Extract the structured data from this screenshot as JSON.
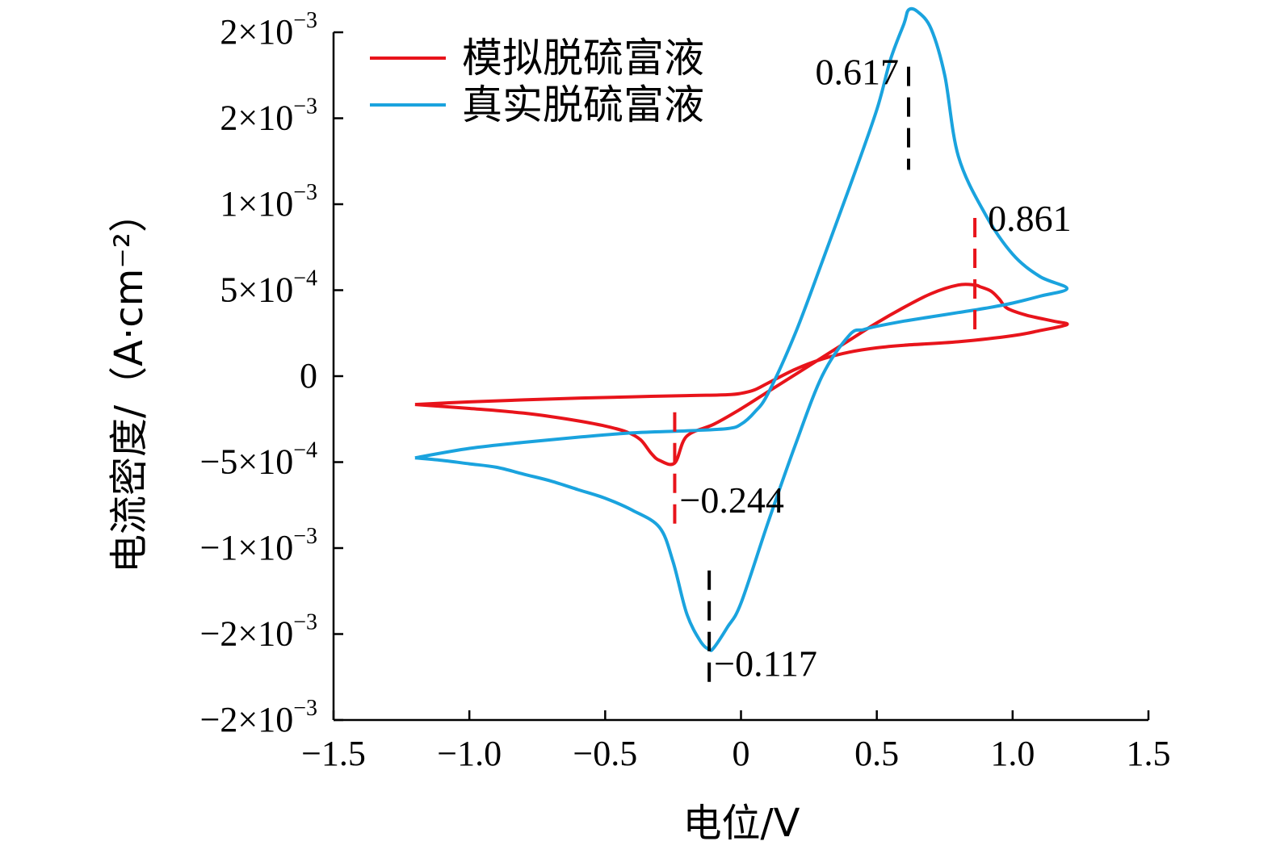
{
  "chart_data": {
    "type": "line",
    "xlabel": "电位/V",
    "ylabel": "电流密度/（A·cm⁻²）",
    "xlim": [
      -1.5,
      1.5
    ],
    "ylim": [
      -0.002,
      0.002
    ],
    "x_ticks": [
      {
        "value": -1.5,
        "label": "−1.5"
      },
      {
        "value": -1.0,
        "label": "−1.0"
      },
      {
        "value": -0.5,
        "label": "−0.5"
      },
      {
        "value": 0,
        "label": "0"
      },
      {
        "value": 0.5,
        "label": "0.5"
      },
      {
        "value": 1.0,
        "label": "1.0"
      },
      {
        "value": 1.5,
        "label": "1.5"
      }
    ],
    "y_ticks": [
      {
        "value": 0.002,
        "mant": "2×10",
        "exp": "−3"
      },
      {
        "value": 0.0015,
        "mant": "2×10",
        "exp": "−3"
      },
      {
        "value": 0.001,
        "mant": "1×10",
        "exp": "−3"
      },
      {
        "value": 0.0005,
        "mant": "5×10",
        "exp": "−4"
      },
      {
        "value": 0,
        "mant": "0",
        "exp": ""
      },
      {
        "value": -0.0005,
        "mant": "−5×10",
        "exp": "−4"
      },
      {
        "value": -0.001,
        "mant": "−1×10",
        "exp": "−3"
      },
      {
        "value": -0.0015,
        "mant": "−2×10",
        "exp": "−3"
      },
      {
        "value": -0.002,
        "mant": "−2×10",
        "exp": "−3"
      }
    ],
    "grid": false,
    "legend_position": "top-left",
    "series": [
      {
        "name": "模拟脱硫富液",
        "color": "#e8141b",
        "x": [
          -1.2,
          -1.0,
          -0.8,
          -0.6,
          -0.4,
          -0.2,
          -0.05,
          0,
          0.05,
          0.1,
          0.2,
          0.3,
          0.4,
          0.5,
          0.6,
          0.8,
          1.0,
          1.1,
          1.2,
          1.15,
          1.05,
          0.98,
          0.95,
          0.92,
          0.88,
          0.861,
          0.8,
          0.7,
          0.6,
          0.5,
          0.4,
          0.3,
          0.2,
          0.1,
          0,
          -0.1,
          -0.2,
          -0.244,
          -0.3,
          -0.33,
          -0.37,
          -0.42,
          -0.5,
          -0.6,
          -0.7,
          -0.8,
          -0.9,
          -1.0,
          -1.1,
          -1.2
        ],
        "y": [
          -0.000165,
          -0.00015,
          -0.000138,
          -0.000128,
          -0.00012,
          -0.000113,
          -0.000108,
          -0.0001,
          -8e-05,
          -4e-05,
          4e-05,
          0.0001,
          0.00014,
          0.000165,
          0.00018,
          0.0002,
          0.000235,
          0.000265,
          0.0003,
          0.00032,
          0.000355,
          0.000395,
          0.00045,
          0.000495,
          0.00052,
          0.00053,
          0.00053,
          0.00048,
          0.0004,
          0.00031,
          0.00021,
          0.00011,
          1e-05,
          -9e-05,
          -0.00019,
          -0.00028,
          -0.00035,
          -0.000505,
          -0.00049,
          -0.00045,
          -0.00037,
          -0.000325,
          -0.00029,
          -0.00026,
          -0.000235,
          -0.000215,
          -0.0002,
          -0.000188,
          -0.000176,
          -0.000165
        ]
      },
      {
        "name": "真实脱硫富液",
        "color": "#1aa3de",
        "x": [
          -1.2,
          -1.0,
          -0.8,
          -0.6,
          -0.4,
          -0.2,
          -0.05,
          0,
          0.05,
          0.1,
          0.2,
          0.3,
          0.4,
          0.5,
          0.55,
          0.6,
          0.617,
          0.65,
          0.7,
          0.75,
          0.8,
          0.9,
          1.0,
          1.1,
          1.2,
          1.1,
          1.0,
          0.9,
          0.8,
          0.7,
          0.6,
          0.5,
          0.45,
          0.4,
          0.3,
          0.2,
          0.1,
          0,
          -0.05,
          -0.1,
          -0.117,
          -0.15,
          -0.2,
          -0.25,
          -0.3,
          -0.4,
          -0.5,
          -0.6,
          -0.7,
          -0.8,
          -0.9,
          -1.0,
          -1.1,
          -1.2
        ],
        "y": [
          -0.000475,
          -0.00042,
          -0.000385,
          -0.000355,
          -0.00033,
          -0.000318,
          -0.000305,
          -0.00028,
          -0.00021,
          -0.0001,
          0.00025,
          0.00067,
          0.0011,
          0.00155,
          0.00184,
          0.00205,
          0.00213,
          0.00212,
          0.00202,
          0.00175,
          0.00128,
          0.00094,
          0.00071,
          0.00058,
          0.00051,
          0.000465,
          0.000425,
          0.000395,
          0.00037,
          0.000345,
          0.00032,
          0.00029,
          0.00027,
          0.00024,
          5e-06,
          -0.0004,
          -0.00085,
          -0.00132,
          -0.00146,
          -0.00158,
          -0.00159,
          -0.00154,
          -0.00138,
          -0.00108,
          -0.00088,
          -0.00078,
          -0.00071,
          -0.00066,
          -0.00061,
          -0.00057,
          -0.00053,
          -0.00051,
          -0.00049,
          -0.000475
        ]
      }
    ],
    "annotations": [
      {
        "label": "0.617",
        "x": 0.617,
        "color": "#000000",
        "y_from": 0.0012,
        "y_to": 0.0018,
        "label_pos": "left-top"
      },
      {
        "label": "0.861",
        "x": 0.861,
        "color": "#e8141b",
        "y_from": 0.00025,
        "y_to": 0.00092,
        "label_pos": "right-top"
      },
      {
        "label": "−0.244",
        "x": -0.244,
        "color": "#e8141b",
        "y_from": -0.00086,
        "y_to": -0.00021,
        "label_pos": "right-bottom"
      },
      {
        "label": "−0.117",
        "x": -0.117,
        "color": "#000000",
        "y_from": -0.00181,
        "y_to": -0.00113,
        "label_pos": "right-bottom"
      }
    ]
  }
}
